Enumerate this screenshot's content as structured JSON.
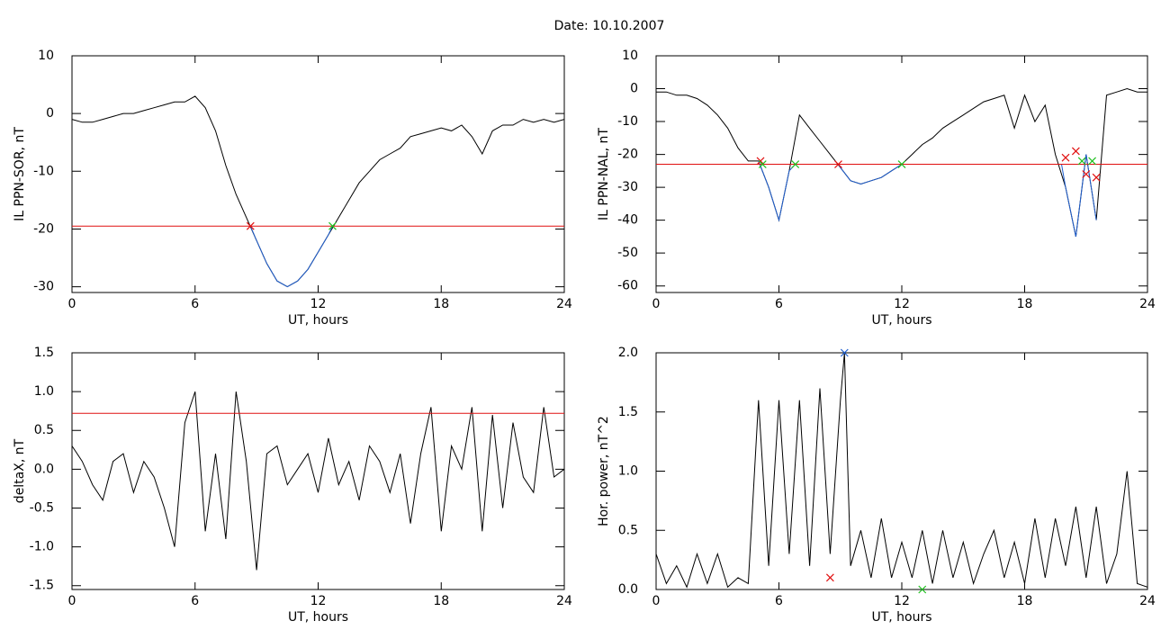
{
  "title": "Date:  10.10.2007",
  "chart_data": [
    {
      "type": "line",
      "xlabel": "UT, hours",
      "ylabel": "IL PPN-SOR, nT",
      "xlim": [
        0,
        24
      ],
      "ylim": [
        -31,
        10
      ],
      "xticks": [
        0,
        6,
        12,
        18,
        24
      ],
      "yticks": [
        -30,
        -20,
        -10,
        0,
        10
      ],
      "series": [
        {
          "color": "#000000",
          "x": [
            0,
            0.5,
            1,
            1.5,
            2,
            2.5,
            3,
            3.5,
            4,
            4.5,
            5,
            5.5,
            6,
            6.5,
            7,
            7.5,
            8,
            8.5,
            9,
            9.5,
            10,
            10.5,
            11,
            11.5,
            12,
            12.5,
            13,
            13.5,
            14,
            14.5,
            15,
            15.5,
            16,
            16.5,
            17,
            17.5,
            18,
            18.5,
            19,
            19.5,
            20,
            20.5,
            21,
            21.5,
            22,
            22.5,
            23,
            23.5,
            24
          ],
          "values": [
            -1,
            -1.5,
            -1.5,
            -1,
            -0.5,
            0,
            0,
            0.5,
            1,
            1.5,
            2,
            2,
            3,
            1,
            -3,
            -9,
            -14,
            -18,
            -22,
            -26,
            -29,
            -30,
            -29,
            -27,
            -24,
            -21,
            -18,
            -15,
            -12,
            -10,
            -8,
            -7,
            -6,
            -4,
            -3.5,
            -3,
            -2.5,
            -3,
            -2,
            -4,
            -7,
            -3,
            -2,
            -2,
            -1,
            -1.5,
            -1,
            -1.5,
            -1
          ]
        },
        {
          "color": "#1f5fd0",
          "x": [
            8.7,
            9,
            9.5,
            10,
            10.5,
            11,
            11.5,
            12,
            12.5,
            12.7
          ],
          "values": [
            -19.5,
            -22,
            -26,
            -29,
            -30,
            -29,
            -27,
            -24,
            -21,
            -19.5
          ]
        },
        {
          "color": "#e01010",
          "x": [
            0,
            24
          ],
          "values": [
            -19.5,
            -19.5
          ]
        }
      ],
      "markers": [
        {
          "color": "#e01010",
          "x": [
            8.7
          ],
          "values": [
            -19.5
          ]
        },
        {
          "color": "#20c020",
          "x": [
            12.7
          ],
          "values": [
            -19.5
          ]
        }
      ]
    },
    {
      "type": "line",
      "xlabel": "UT, hours",
      "ylabel": "IL PPN-NAL, nT",
      "xlim": [
        0,
        24
      ],
      "ylim": [
        -62,
        10
      ],
      "xticks": [
        0,
        6,
        12,
        18,
        24
      ],
      "yticks": [
        -60,
        -50,
        -40,
        -30,
        -20,
        -10,
        0,
        10
      ],
      "series": [
        {
          "color": "#000000",
          "x": [
            0,
            0.5,
            1,
            1.5,
            2,
            2.5,
            3,
            3.5,
            4,
            4.5,
            5,
            5.5,
            6,
            6.5,
            7,
            7.5,
            8,
            8.5,
            9,
            9.5,
            10,
            10.5,
            11,
            11.5,
            12,
            12.5,
            13,
            13.5,
            14,
            14.5,
            15,
            15.5,
            16,
            16.5,
            17,
            17.5,
            18,
            18.5,
            19,
            19.5,
            20,
            20.5,
            21,
            21.5,
            22,
            22.5,
            23,
            23.5,
            24
          ],
          "values": [
            -1,
            -1,
            -2,
            -2,
            -3,
            -5,
            -8,
            -12,
            -18,
            -22,
            -22,
            -30,
            -40,
            -25,
            -8,
            -12,
            -16,
            -20,
            -24,
            -28,
            -29,
            -28,
            -27,
            -25,
            -23,
            -20,
            -17,
            -15,
            -12,
            -10,
            -8,
            -6,
            -4,
            -3,
            -2,
            -12,
            -2,
            -10,
            -5,
            -20,
            -30,
            -45,
            -20,
            -40,
            -2,
            -1,
            0,
            -1,
            -1
          ]
        },
        {
          "color": "#1f5fd0",
          "x": [
            5,
            5.5,
            6,
            6.5,
            6.8,
            7,
            8.9,
            9,
            9.5,
            10,
            10.5,
            11,
            11.5,
            12,
            12.2,
            19.8,
            20,
            20.5,
            21,
            21.5
          ],
          "values": [
            -22,
            -30,
            -40,
            -25,
            -23,
            null,
            -23,
            -24,
            -28,
            -29,
            -28,
            -27,
            -25,
            -23,
            null,
            -23,
            -30,
            -45,
            -20,
            -40
          ]
        },
        {
          "color": "#e01010",
          "x": [
            0,
            24
          ],
          "values": [
            -23,
            -23
          ]
        }
      ],
      "markers": [
        {
          "color": "#e01010",
          "x": [
            5.1,
            8.9,
            20,
            20.5,
            21,
            21.5
          ],
          "values": [
            -22,
            -23,
            -21,
            -19,
            -26,
            -27
          ]
        },
        {
          "color": "#20c020",
          "x": [
            5.2,
            6.8,
            12,
            20.8,
            21.3
          ],
          "values": [
            -23,
            -23,
            -23,
            -22,
            -22
          ]
        }
      ]
    },
    {
      "type": "line",
      "xlabel": "UT, hours",
      "ylabel": "deltaX, nT",
      "xlim": [
        0,
        24
      ],
      "ylim": [
        -1.55,
        1.5
      ],
      "xticks": [
        0,
        6,
        12,
        18,
        24
      ],
      "yticks": [
        -1.5,
        {
          "value": -1,
          "label": "-1.0"
        },
        -0.5,
        {
          "value": 0,
          "label": "0.0"
        },
        0.5,
        {
          "value": 1,
          "label": "1.0"
        },
        1.5
      ],
      "series": [
        {
          "color": "#000000",
          "x": [
            0,
            0.5,
            1,
            1.5,
            2,
            2.5,
            3,
            3.5,
            4,
            4.5,
            5,
            5.5,
            6,
            6.5,
            7,
            7.5,
            8,
            8.5,
            9,
            9.5,
            10,
            10.5,
            11,
            11.5,
            12,
            12.5,
            13,
            13.5,
            14,
            14.5,
            15,
            15.5,
            16,
            16.5,
            17,
            17.5,
            18,
            18.5,
            19,
            19.5,
            20,
            20.5,
            21,
            21.5,
            22,
            22.5,
            23,
            23.5,
            24
          ],
          "values": [
            0.3,
            0.1,
            -0.2,
            -0.4,
            0.1,
            0.2,
            -0.3,
            0.1,
            -0.1,
            -0.5,
            -1.0,
            0.6,
            1.0,
            -0.8,
            0.2,
            -0.9,
            1.0,
            0.1,
            -1.3,
            0.2,
            0.3,
            -0.2,
            0.0,
            0.2,
            -0.3,
            0.4,
            -0.2,
            0.1,
            -0.4,
            0.3,
            0.1,
            -0.3,
            0.2,
            -0.7,
            0.2,
            0.8,
            -0.8,
            0.3,
            0.0,
            0.8,
            -0.8,
            0.7,
            -0.5,
            0.6,
            -0.1,
            -0.3,
            0.8,
            -0.1,
            0.0
          ]
        },
        {
          "color": "#e01010",
          "x": [
            0,
            24
          ],
          "values": [
            0.72,
            0.72
          ]
        }
      ],
      "markers": []
    },
    {
      "type": "line",
      "xlabel": "UT, hours",
      "ylabel": "Hor. power, nT^2",
      "xlim": [
        0,
        24
      ],
      "ylim": [
        0,
        2
      ],
      "xticks": [
        0,
        6,
        12,
        18,
        24
      ],
      "yticks": [
        {
          "value": 0,
          "label": "0.0"
        },
        0.5,
        {
          "value": 1,
          "label": "1.0"
        },
        1.5,
        {
          "value": 2,
          "label": "2.0"
        }
      ],
      "series": [
        {
          "color": "#000000",
          "x": [
            0,
            0.5,
            1,
            1.5,
            2,
            2.5,
            3,
            3.5,
            4,
            4.5,
            5,
            5.5,
            6,
            6.5,
            7,
            7.5,
            8,
            8.5,
            9,
            9.2,
            9.5,
            10,
            10.5,
            11,
            11.5,
            12,
            12.5,
            13,
            13.5,
            14,
            14.5,
            15,
            15.5,
            16,
            16.5,
            17,
            17.5,
            18,
            18.5,
            19,
            19.5,
            20,
            20.5,
            21,
            21.5,
            22,
            22.5,
            23,
            23.5,
            24
          ],
          "values": [
            0.3,
            0.05,
            0.2,
            0.02,
            0.3,
            0.05,
            0.3,
            0.02,
            0.1,
            0.05,
            1.6,
            0.2,
            1.6,
            0.3,
            1.6,
            0.2,
            1.7,
            0.3,
            1.6,
            2.0,
            0.2,
            0.5,
            0.1,
            0.6,
            0.1,
            0.4,
            0.1,
            0.5,
            0.05,
            0.5,
            0.1,
            0.4,
            0.05,
            0.3,
            0.5,
            0.1,
            0.4,
            0.05,
            0.6,
            0.1,
            0.6,
            0.2,
            0.7,
            0.1,
            0.7,
            0.05,
            0.3,
            1.0,
            0.05,
            0.02
          ]
        }
      ],
      "markers": [
        {
          "color": "#1f5fd0",
          "x": [
            9.2
          ],
          "values": [
            2.0
          ]
        },
        {
          "color": "#e01010",
          "x": [
            8.5
          ],
          "values": [
            0.1
          ]
        },
        {
          "color": "#20c020",
          "x": [
            13
          ],
          "values": [
            0.0
          ]
        }
      ]
    }
  ]
}
